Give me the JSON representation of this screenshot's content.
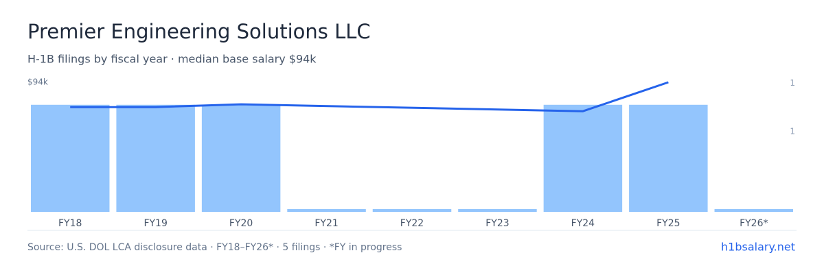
{
  "chart_data": {
    "type": "bar",
    "title": "Premier Engineering Solutions LLC",
    "subtitle": "H-1B filings by fiscal year · median base salary $94k",
    "categories": [
      "FY18",
      "FY19",
      "FY20",
      "FY21",
      "FY22",
      "FY23",
      "FY24",
      "FY25",
      "FY26*"
    ],
    "series": [
      {
        "name": "Filings",
        "color": "#93c5fd",
        "axis": "y2",
        "values": [
          1,
          1,
          1,
          0,
          0,
          0,
          1,
          1,
          0
        ]
      },
      {
        "name": "Median base salary",
        "type": "line",
        "color": "#2563eb",
        "x": [
          "FY18",
          "FY19",
          "FY20",
          "FY24",
          "FY25"
        ],
        "values": [
          76000,
          76000,
          78000,
          73000,
          94000
        ]
      }
    ],
    "ylim": [
      0,
      94000
    ],
    "yticks": [
      {
        "value": 94000,
        "label": "$94k"
      }
    ],
    "y2lim": [
      0,
      1.21
    ],
    "y2ticks": [
      {
        "value": 1.2,
        "label": "1"
      },
      {
        "value": 0.75,
        "label": "1"
      }
    ],
    "footer": "Source: U.S. DOL LCA disclosure data · FY18–FY26* · 5 filings · *FY in progress",
    "site": "h1bsalary.net"
  }
}
